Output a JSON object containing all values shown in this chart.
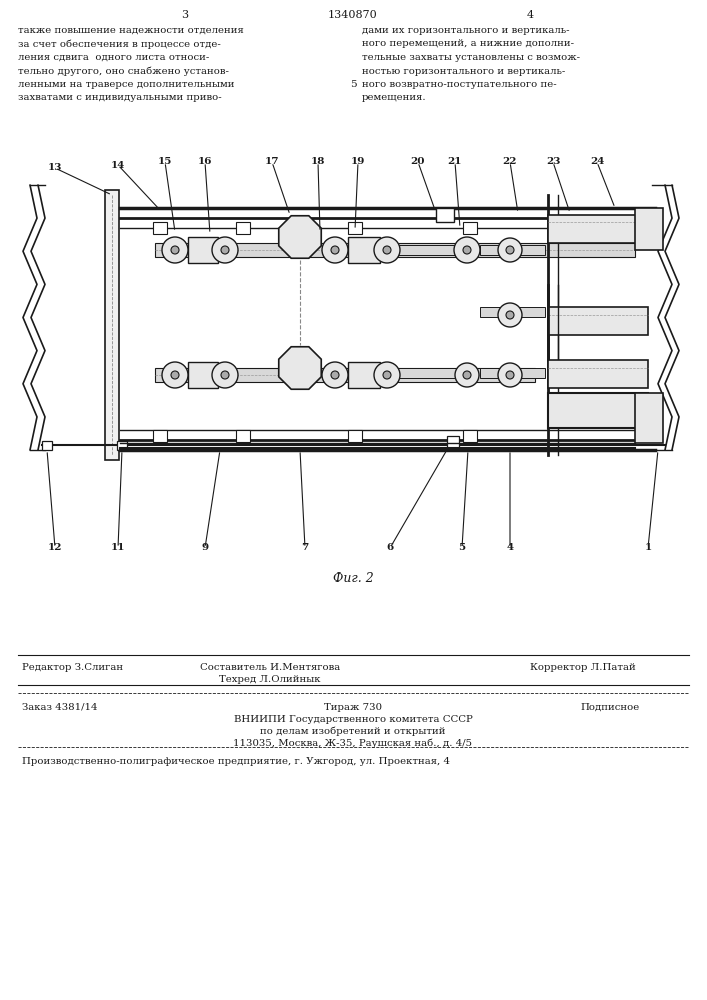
{
  "page_width": 7.07,
  "page_height": 10.0,
  "bg_color": "#ffffff",
  "header_line3": "3",
  "header_center": "1340870",
  "header_line4": "4",
  "text_col1": "также повышение надежности отделения\nза счет обеспечения в процессе отде-\nления сдвига  одного листа относи-\nтельно другого, оно снабжено установ-\nленными на траверсе дополнительными\nзахватами с индивидуальными приво-",
  "text_col2": "дами их горизонтального и вертикаль-\nного перемещений, а нижние дополни-\nтельные захваты установлены с возмож-\nностью горизонтального и вертикаль-\nного возвратно-поступательного пе-\nремещения.",
  "line_number_col": "5",
  "fig_caption": "Фиг. 2",
  "footer_col1_row1": "Редактор З.Слиган",
  "footer_col2_row1": "Составитель И.Ментягова",
  "footer_col2_row2": "Техред Л.Олийнык",
  "footer_col3_row2": "Корректор Л.Патай",
  "footer_order": "Заказ 4381/14",
  "footer_tirazh": "Тираж 730",
  "footer_podpisnoe": "Подписное",
  "footer_vniipie": "ВНИИПИ Государственного комитета СССР",
  "footer_dela": "по делам изобретений и открытий",
  "footer_address": "113035, Москва, Ж-35, Раушская наб., д. 4/5",
  "footer_production": "Производственно-полиграфическое предприятие, г. Ужгород, ул. Проектная, 4"
}
